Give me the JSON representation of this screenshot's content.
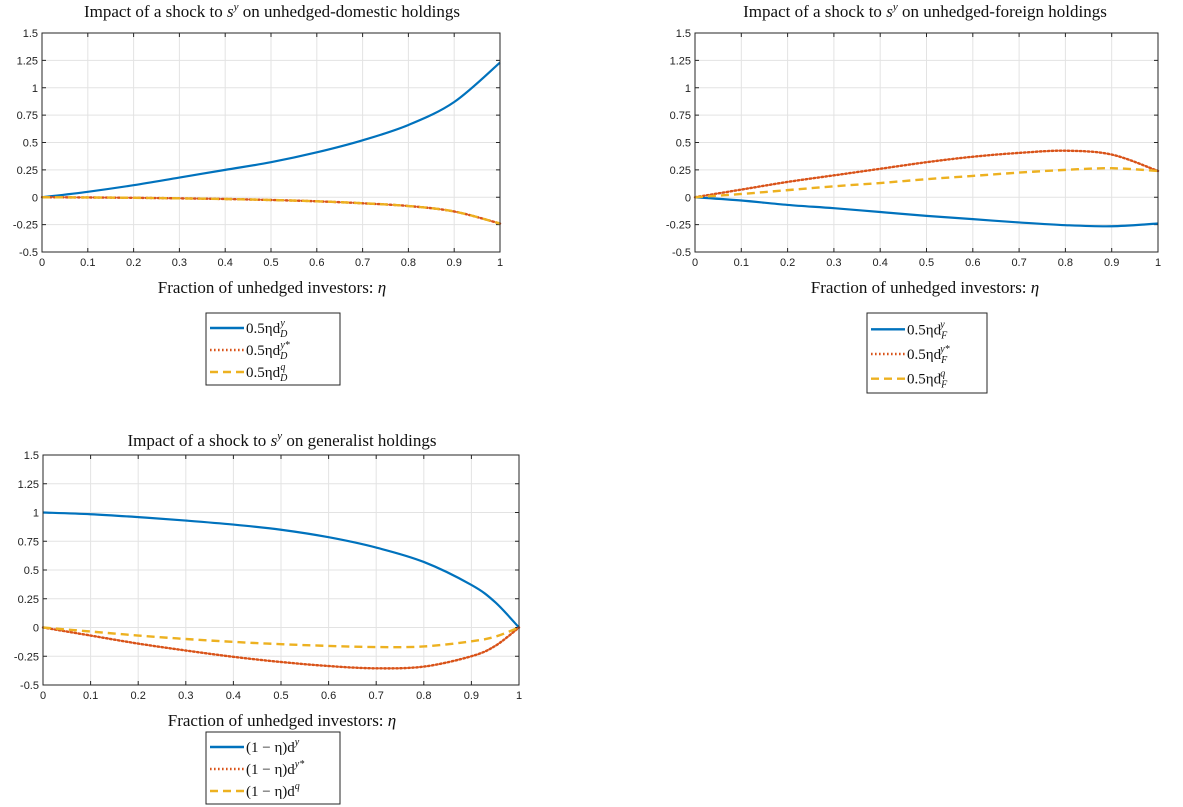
{
  "chart_data": [
    {
      "type": "line",
      "title": "Impact of a shock to s^y on unhedged-domestic holdings",
      "title_text": "Impact of a shock to ",
      "title_var": "s",
      "title_sup": "y",
      "title_rest": " on unhedged-domestic holdings",
      "xlabel": "Fraction of unhedged investors: η",
      "xlabel_text": "Fraction of unhedged investors: ",
      "xlabel_var": "η",
      "xlim": [
        0,
        1
      ],
      "ylim": [
        -0.5,
        1.5
      ],
      "xticks": [
        "0",
        "0.1",
        "0.2",
        "0.3",
        "0.4",
        "0.5",
        "0.6",
        "0.7",
        "0.8",
        "0.9",
        "1"
      ],
      "yticks": [
        "-0.5",
        "-0.25",
        "0",
        "0.25",
        "0.5",
        "0.75",
        "1",
        "1.25",
        "1.5"
      ],
      "grid": true,
      "legend_position": "below",
      "x": [
        0,
        0.1,
        0.2,
        0.3,
        0.4,
        0.5,
        0.6,
        0.7,
        0.8,
        0.9,
        1.0
      ],
      "series": [
        {
          "name": "0.5ηd_D^y",
          "legend_main": "0.5ηd",
          "legend_sub": "D",
          "legend_sup": "y",
          "color": "#0072BD",
          "style": "solid",
          "values": [
            0,
            0.05,
            0.11,
            0.18,
            0.25,
            0.32,
            0.41,
            0.52,
            0.66,
            0.87,
            1.23
          ]
        },
        {
          "name": "0.5ηd_D^{y*}",
          "legend_main": "0.5ηd",
          "legend_sub": "D",
          "legend_sup": "y*",
          "color": "#D95319",
          "style": "dotted",
          "values": [
            0,
            -0.002,
            -0.005,
            -0.01,
            -0.016,
            -0.025,
            -0.037,
            -0.055,
            -0.08,
            -0.13,
            -0.24
          ]
        },
        {
          "name": "0.5ηd_D^q",
          "legend_main": "0.5ηd",
          "legend_sub": "D",
          "legend_sup": "q",
          "color": "#EDB120",
          "style": "dashed",
          "values": [
            0,
            -0.002,
            -0.005,
            -0.01,
            -0.016,
            -0.025,
            -0.037,
            -0.055,
            -0.08,
            -0.13,
            -0.24
          ]
        }
      ]
    },
    {
      "type": "line",
      "title": "Impact of a shock to s^y on unhedged-foreign holdings",
      "title_text": "Impact of a shock to ",
      "title_var": "s",
      "title_sup": "y",
      "title_rest": " on unhedged-foreign holdings",
      "xlabel": "Fraction of unhedged investors: η",
      "xlabel_text": "Fraction of unhedged investors: ",
      "xlabel_var": "η",
      "xlim": [
        0,
        1
      ],
      "ylim": [
        -0.5,
        1.5
      ],
      "xticks": [
        "0",
        "0.1",
        "0.2",
        "0.3",
        "0.4",
        "0.5",
        "0.6",
        "0.7",
        "0.8",
        "0.9",
        "1"
      ],
      "yticks": [
        "-0.5",
        "-0.25",
        "0",
        "0.25",
        "0.5",
        "0.75",
        "1",
        "1.25",
        "1.5"
      ],
      "grid": true,
      "legend_position": "below",
      "x": [
        0,
        0.1,
        0.2,
        0.3,
        0.4,
        0.5,
        0.6,
        0.7,
        0.8,
        0.9,
        1.0
      ],
      "series": [
        {
          "name": "0.5ηd_F^y",
          "legend_main": "0.5ηd",
          "legend_sub": "F",
          "legend_sup": "y",
          "color": "#0072BD",
          "style": "solid",
          "values": [
            0,
            -0.03,
            -0.07,
            -0.1,
            -0.135,
            -0.17,
            -0.2,
            -0.23,
            -0.255,
            -0.265,
            -0.24
          ]
        },
        {
          "name": "0.5ηd_F^{y*}",
          "legend_main": "0.5ηd",
          "legend_sub": "F",
          "legend_sup": "y*",
          "color": "#D95319",
          "style": "dotted",
          "values": [
            0,
            0.07,
            0.14,
            0.2,
            0.26,
            0.32,
            0.37,
            0.405,
            0.425,
            0.39,
            0.24
          ]
        },
        {
          "name": "0.5ηd_F^q",
          "legend_main": "0.5ηd",
          "legend_sub": "F",
          "legend_sup": "q",
          "color": "#EDB120",
          "style": "dashed",
          "values": [
            0,
            0.03,
            0.065,
            0.1,
            0.13,
            0.165,
            0.195,
            0.225,
            0.25,
            0.265,
            0.24
          ]
        }
      ]
    },
    {
      "type": "line",
      "title": "Impact of a shock to s^y on generalist holdings",
      "title_text": "Impact of a shock to ",
      "title_var": "s",
      "title_sup": "y",
      "title_rest": " on generalist holdings",
      "xlabel": "Fraction of unhedged investors: η",
      "xlabel_text": "Fraction of unhedged investors: ",
      "xlabel_var": "η",
      "xlim": [
        0,
        1
      ],
      "ylim": [
        -0.5,
        1.5
      ],
      "xticks": [
        "0",
        "0.1",
        "0.2",
        "0.3",
        "0.4",
        "0.5",
        "0.6",
        "0.7",
        "0.8",
        "0.9",
        "1"
      ],
      "yticks": [
        "-0.5",
        "-0.25",
        "0",
        "0.25",
        "0.5",
        "0.75",
        "1",
        "1.25",
        "1.5"
      ],
      "grid": true,
      "legend_position": "below",
      "x": [
        0,
        0.1,
        0.2,
        0.3,
        0.4,
        0.5,
        0.6,
        0.7,
        0.8,
        0.9,
        0.95,
        1.0
      ],
      "series": [
        {
          "name": "(1−η)d^y",
          "legend_main": "(1 − η)d",
          "legend_sub": "",
          "legend_sup": "y",
          "color": "#0072BD",
          "style": "solid",
          "values": [
            1.0,
            0.985,
            0.96,
            0.93,
            0.895,
            0.85,
            0.785,
            0.695,
            0.57,
            0.37,
            0.22,
            0
          ]
        },
        {
          "name": "(1−η)d^{y*}",
          "legend_main": "(1 − η)d",
          "legend_sub": "",
          "legend_sup": "y*",
          "color": "#D95319",
          "style": "dotted",
          "values": [
            0,
            -0.07,
            -0.14,
            -0.2,
            -0.255,
            -0.3,
            -0.335,
            -0.355,
            -0.34,
            -0.25,
            -0.16,
            0
          ]
        },
        {
          "name": "(1−η)d^q",
          "legend_main": "(1 − η)d",
          "legend_sub": "",
          "legend_sup": "q",
          "color": "#EDB120",
          "style": "dashed",
          "values": [
            0,
            -0.035,
            -0.07,
            -0.1,
            -0.125,
            -0.145,
            -0.16,
            -0.17,
            -0.165,
            -0.12,
            -0.08,
            0
          ]
        }
      ]
    }
  ]
}
